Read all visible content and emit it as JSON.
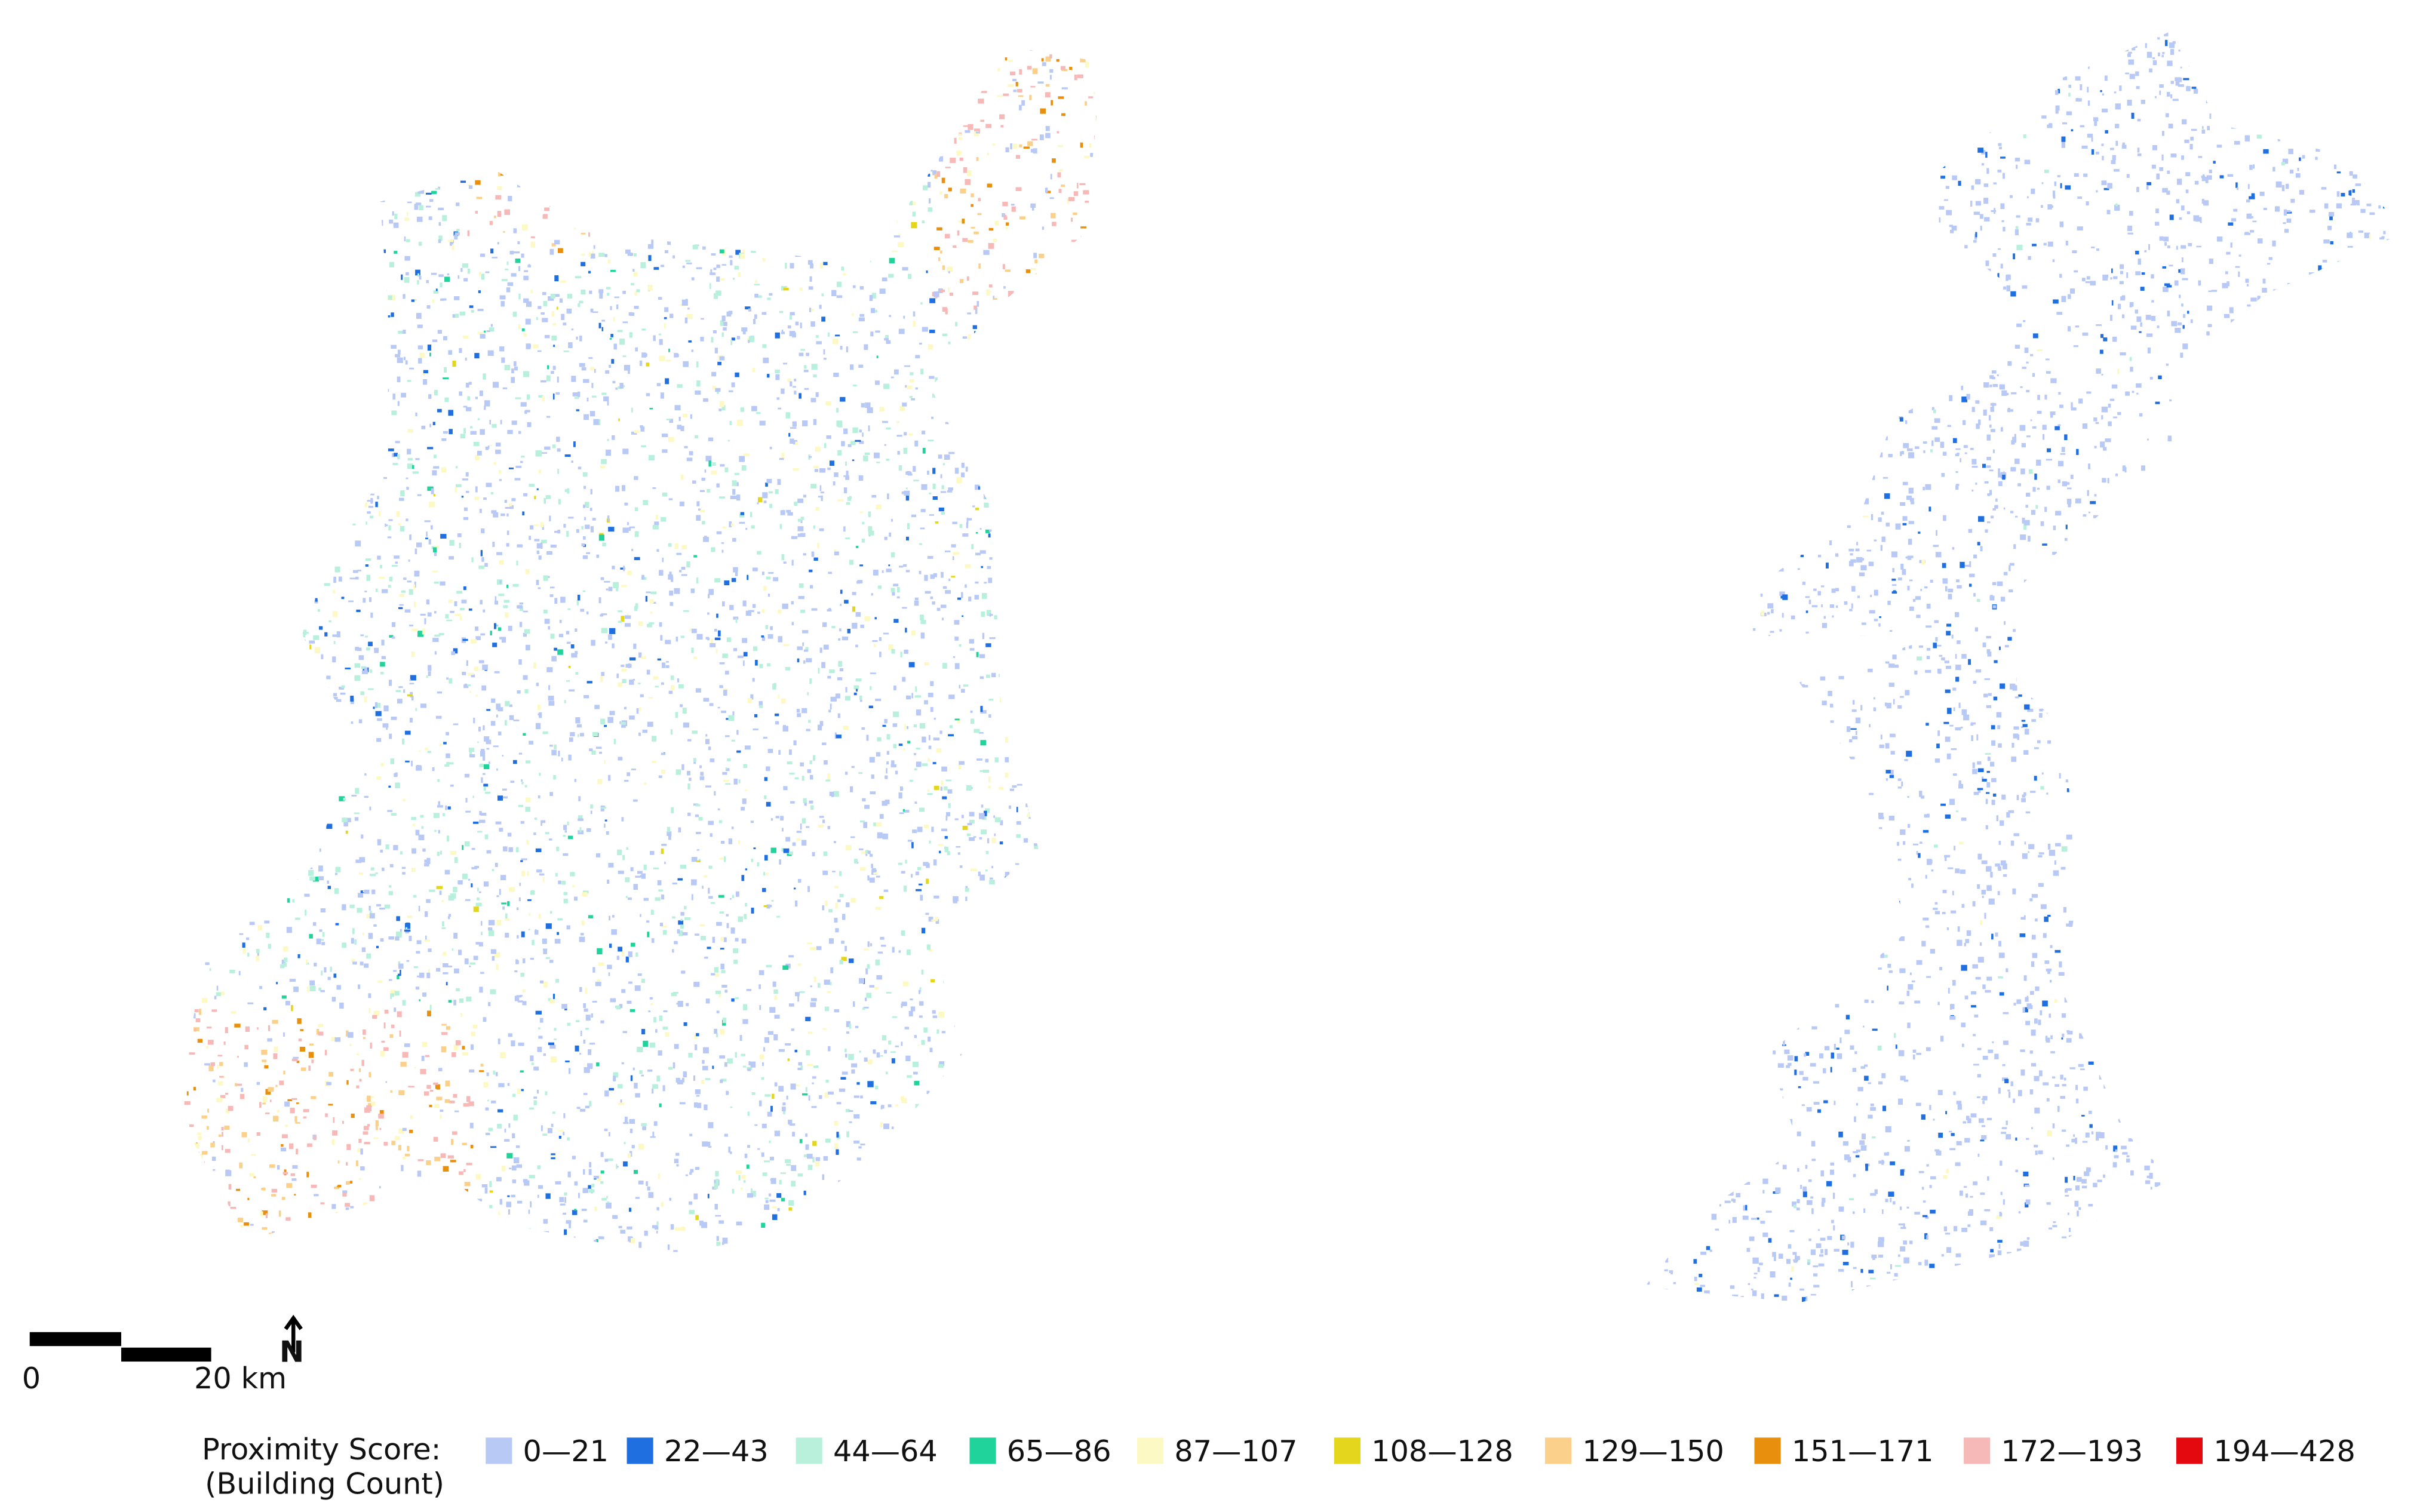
{
  "scale_bar": {
    "start_label": "0",
    "end_label": "20 km"
  },
  "north_arrow": {
    "label": "N"
  },
  "legend": {
    "title": "Proximity Score:",
    "subtitle": "(Building Count)",
    "items": [
      {
        "label": "0—21",
        "color": "#b9c9f5"
      },
      {
        "label": "22—43",
        "color": "#1f6fe0"
      },
      {
        "label": "44—64",
        "color": "#b8f0dc"
      },
      {
        "label": "65—86",
        "color": "#1fd39a"
      },
      {
        "label": "87—107",
        "color": "#fdf9c4"
      },
      {
        "label": "108—128",
        "color": "#e3d61c"
      },
      {
        "label": "129—150",
        "color": "#fbd08a"
      },
      {
        "label": "151—171",
        "color": "#e8900e"
      },
      {
        "label": "172—193",
        "color": "#f7b8b8"
      },
      {
        "label": "194—428",
        "color": "#e3090f"
      }
    ]
  }
}
